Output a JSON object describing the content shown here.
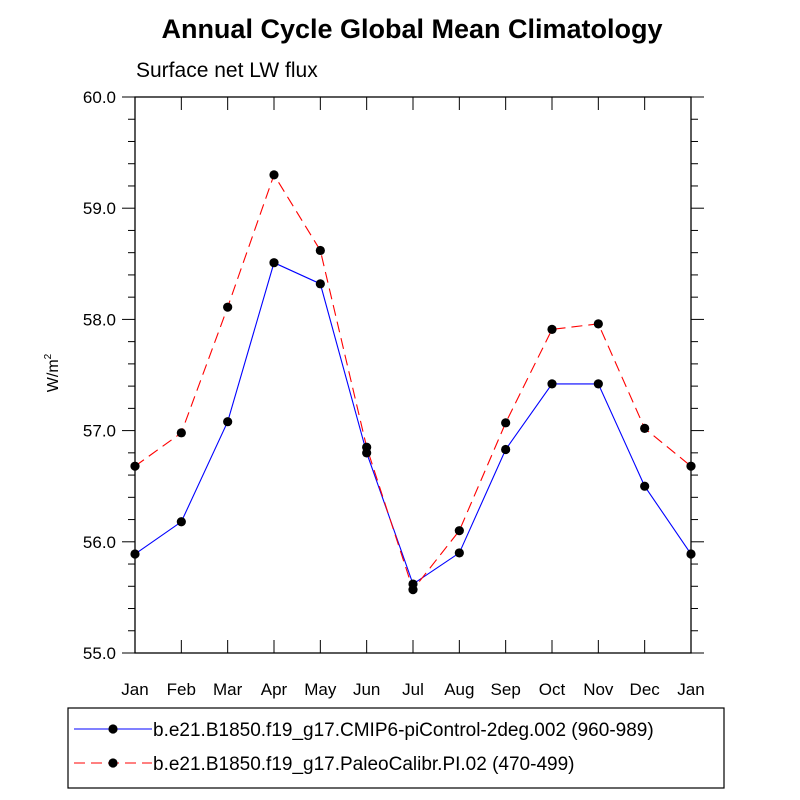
{
  "chart_data": {
    "type": "line",
    "title": "Annual Cycle Global Mean Climatology",
    "subtitle": "Surface net LW flux",
    "ylabel_base": "W/m",
    "ylabel_sup": "2",
    "xlabel": "",
    "categories": [
      "Jan",
      "Feb",
      "Mar",
      "Apr",
      "May",
      "Jun",
      "Jul",
      "Aug",
      "Sep",
      "Oct",
      "Nov",
      "Dec",
      "Jan"
    ],
    "ylim": [
      55.0,
      60.0
    ],
    "yticks": [
      55.0,
      56.0,
      57.0,
      58.0,
      59.0,
      60.0
    ],
    "ytick_labels": [
      "55.0",
      "56.0",
      "57.0",
      "58.0",
      "59.0",
      "60.0"
    ],
    "grid": false,
    "legend_position": "bottom",
    "series": [
      {
        "name": "b.e21.B1850.f19_g17.CMIP6-piControl-2deg.002 (960-989)",
        "color": "#0000ff",
        "dash": "solid",
        "values": [
          55.89,
          56.18,
          57.08,
          58.51,
          58.32,
          56.8,
          55.62,
          55.9,
          56.83,
          57.42,
          57.42,
          56.5,
          55.89
        ]
      },
      {
        "name": "b.e21.B1850.f19_g17.PaleoCalibr.PI.02 (470-499)",
        "color": "#ff0000",
        "dash": "dashed",
        "values": [
          56.68,
          56.98,
          58.11,
          59.3,
          58.62,
          56.85,
          55.57,
          56.1,
          57.07,
          57.91,
          57.96,
          57.02,
          56.68
        ]
      }
    ]
  }
}
